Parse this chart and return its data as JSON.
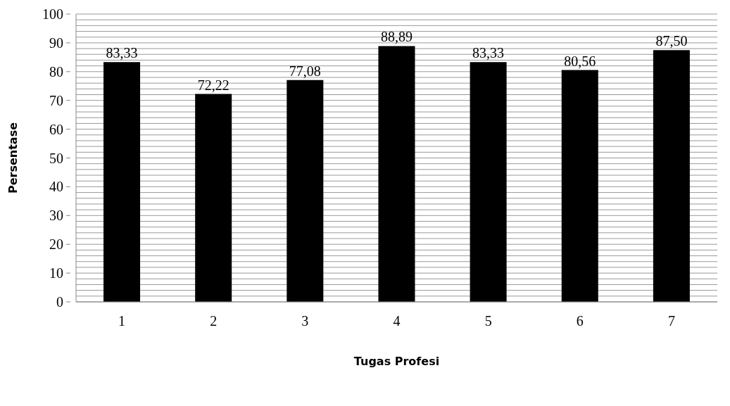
{
  "chart_data": {
    "type": "bar",
    "xlabel": "Tugas Profesi",
    "ylabel": "Persentase",
    "categories": [
      "1",
      "2",
      "3",
      "4",
      "5",
      "6",
      "7"
    ],
    "values": [
      83.33,
      72.22,
      77.08,
      88.89,
      83.33,
      80.56,
      87.5
    ],
    "value_labels": [
      "83,33",
      "72,22",
      "77,08",
      "88,89",
      "83,33",
      "80,56",
      "87,50"
    ],
    "color": "#000000",
    "ylim": [
      0,
      100
    ],
    "yticks": [
      0,
      {
        "value": 2,
        "label": null
      },
      {
        "value": 4,
        "label": null
      },
      {
        "value": 6,
        "label": null
      },
      {
        "value": 8,
        "label": null
      },
      10,
      {
        "value": 12,
        "label": null
      },
      {
        "value": 14,
        "label": null
      },
      {
        "value": 16,
        "label": null
      },
      {
        "value": 18,
        "label": null
      },
      20,
      {
        "value": 22,
        "label": null
      },
      {
        "value": 24,
        "label": null
      },
      {
        "value": 26,
        "label": null
      },
      {
        "value": 28,
        "label": null
      },
      30,
      {
        "value": 32,
        "label": null
      },
      {
        "value": 34,
        "label": null
      },
      {
        "value": 36,
        "label": null
      },
      {
        "value": 38,
        "label": null
      },
      40,
      {
        "value": 42,
        "label": null
      },
      {
        "value": 44,
        "label": null
      },
      {
        "value": 46,
        "label": null
      },
      {
        "value": 48,
        "label": null
      },
      50,
      {
        "value": 52,
        "label": null
      },
      {
        "value": 54,
        "label": null
      },
      {
        "value": 56,
        "label": null
      },
      {
        "value": 58,
        "label": null
      },
      60,
      {
        "value": 62,
        "label": null
      },
      {
        "value": 64,
        "label": null
      },
      {
        "value": 66,
        "label": null
      },
      {
        "value": 68,
        "label": null
      },
      70,
      {
        "value": 72,
        "label": null
      },
      {
        "value": 74,
        "label": null
      },
      {
        "value": 76,
        "label": null
      },
      {
        "value": 78,
        "label": null
      },
      80,
      {
        "value": 82,
        "label": null
      },
      {
        "value": 84,
        "label": null
      },
      {
        "value": 86,
        "label": null
      },
      {
        "value": 88,
        "label": null
      },
      90,
      {
        "value": 92,
        "label": null
      },
      {
        "value": 94,
        "label": null
      },
      {
        "value": 96,
        "label": null
      },
      {
        "value": 98,
        "label": null
      },
      100
    ],
    "grid": true
  }
}
